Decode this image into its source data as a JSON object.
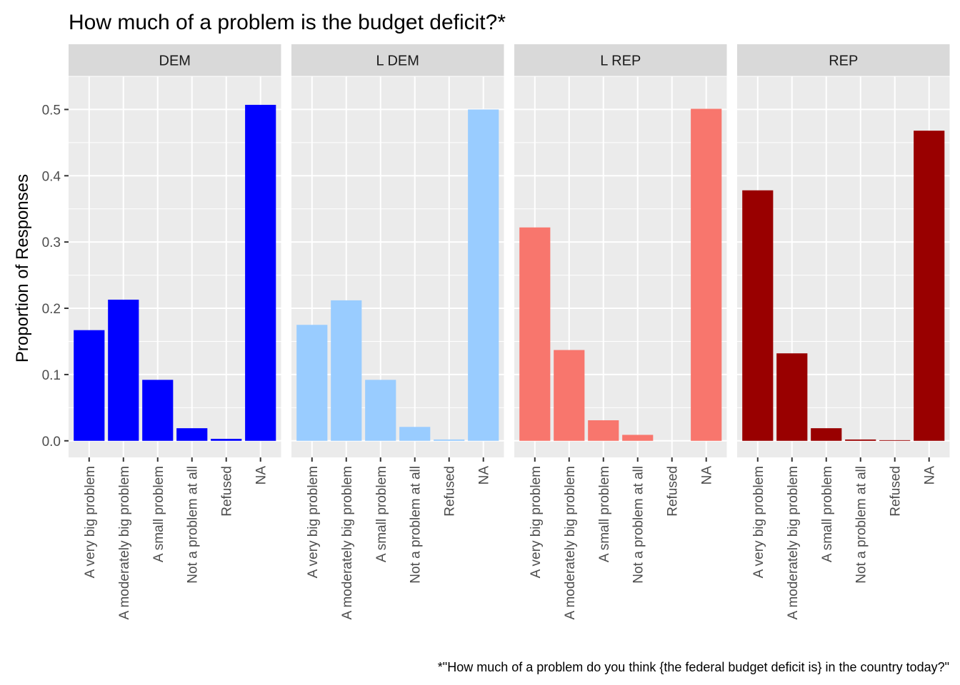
{
  "chart_data": {
    "type": "bar",
    "title": "How much of a problem is the budget deficit?*",
    "caption": "*\"How much of a problem do you think {the federal budget deficit is} in the country today?\"",
    "xlabel": "",
    "ylabel": "Proportion of Responses",
    "ylim": [
      -0.025,
      0.55
    ],
    "yticks": [
      0.0,
      0.1,
      0.2,
      0.3,
      0.4,
      0.5
    ],
    "ytick_labels": [
      "0.0",
      "0.1",
      "0.2",
      "0.3",
      "0.4",
      "0.5"
    ],
    "grid": true,
    "facet_by": "party",
    "categories": [
      "A very big problem",
      "A moderately big problem",
      "A small problem",
      "Not a problem at all",
      "Refused",
      "NA"
    ],
    "panels": [
      {
        "name": "DEM",
        "color": "#0000FF",
        "values": [
          0.167,
          0.213,
          0.092,
          0.019,
          0.003,
          0.507
        ]
      },
      {
        "name": "L DEM",
        "color": "#99CCFF",
        "values": [
          0.175,
          0.212,
          0.092,
          0.021,
          0.002,
          0.5
        ]
      },
      {
        "name": "L REP",
        "color": "#F8766D",
        "values": [
          0.322,
          0.137,
          0.031,
          0.009,
          0.0,
          0.501
        ]
      },
      {
        "name": "REP",
        "color": "#990000",
        "values": [
          0.378,
          0.132,
          0.019,
          0.002,
          0.001,
          0.468
        ]
      }
    ]
  }
}
